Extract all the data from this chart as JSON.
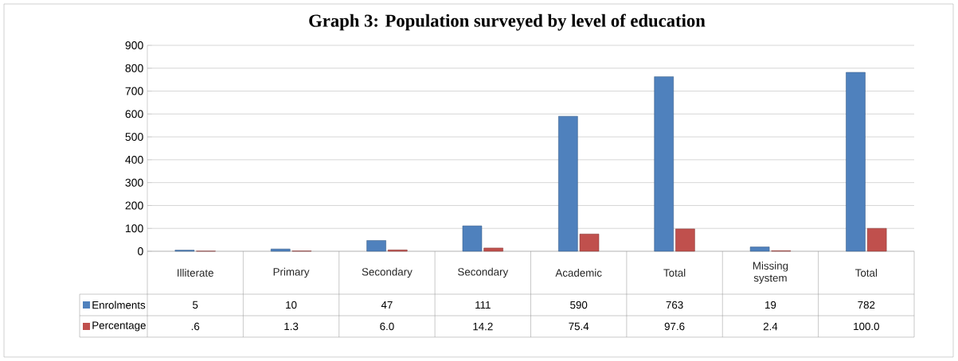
{
  "chart_data": {
    "type": "bar",
    "title": "Graph 3: Population surveyed by level of education",
    "categories": [
      "Illiterate",
      "Primary",
      "Secondary",
      "Secondary",
      "Academic",
      "Total",
      "Missing system",
      "Total"
    ],
    "series": [
      {
        "name": "Enrolments",
        "color": "#4f81bd",
        "values": [
          5,
          10,
          47,
          111,
          590,
          763,
          19,
          782
        ],
        "value_labels": [
          "5",
          "10",
          "47",
          "111",
          "590",
          "763",
          "19",
          "782"
        ]
      },
      {
        "name": "Percentage",
        "color": "#c0504d",
        "values": [
          0.6,
          1.3,
          6.0,
          14.2,
          75.4,
          97.6,
          2.4,
          100.0
        ],
        "value_labels": [
          ".6",
          "1.3",
          "6.0",
          "14.2",
          "75.4",
          "97.6",
          "2.4",
          "100.0"
        ]
      }
    ],
    "ylim": [
      0,
      900
    ],
    "yticks": [
      0,
      100,
      200,
      300,
      400,
      500,
      600,
      700,
      800,
      900
    ],
    "grid": "y",
    "legend": "bottom left"
  }
}
